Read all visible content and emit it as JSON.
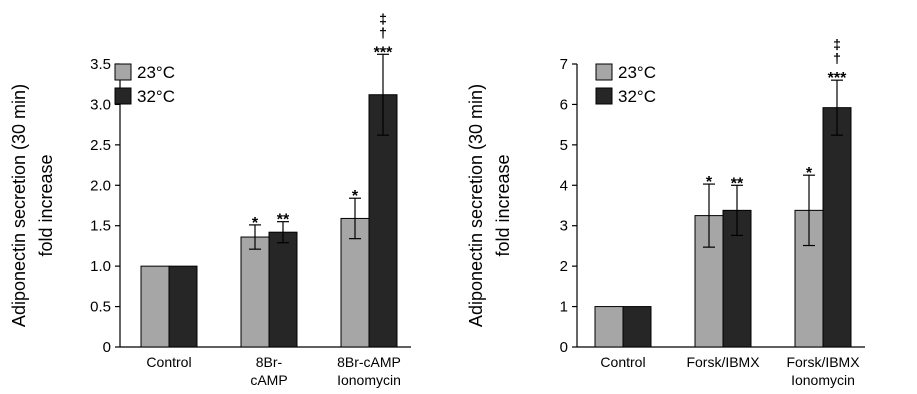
{
  "chart_data": [
    {
      "type": "bar",
      "ylabel_lines": [
        "Adiponectin secretion (30 min)",
        "fold increase"
      ],
      "ylim": [
        0,
        3.5
      ],
      "yticks": [
        "0",
        "0.5",
        "1.0",
        "1.5",
        "2.0",
        "2.5",
        "3.0",
        "3.5"
      ],
      "ytick_values": [
        0,
        0.5,
        1.0,
        1.5,
        2.0,
        2.5,
        3.0,
        3.5
      ],
      "categories": [
        {
          "lines": [
            "Control"
          ]
        },
        {
          "lines": [
            "8Br-",
            "cAMP"
          ]
        },
        {
          "lines": [
            "8Br-cAMP",
            "Ionomycin"
          ]
        }
      ],
      "series": [
        {
          "name": "23°C",
          "color": "#a6a6a6",
          "values": [
            1.0,
            1.36,
            1.59
          ],
          "errors": [
            0,
            0.15,
            0.25
          ],
          "annotations": [
            [],
            [
              "*"
            ],
            [
              "*"
            ]
          ]
        },
        {
          "name": "32°C",
          "color": "#262626",
          "values": [
            1.0,
            1.42,
            3.12
          ],
          "errors": [
            0,
            0.13,
            0.5
          ],
          "annotations": [
            [],
            [
              "**"
            ],
            [
              "‡",
              "†",
              "***"
            ]
          ]
        }
      ],
      "legend_position": "top-left",
      "grid": false
    },
    {
      "type": "bar",
      "ylabel_lines": [
        "Adiponectin secretion (30 min)",
        "fold increase"
      ],
      "ylim": [
        0,
        7
      ],
      "yticks": [
        "0",
        "1",
        "2",
        "3",
        "4",
        "5",
        "6",
        "7"
      ],
      "ytick_values": [
        0,
        1,
        2,
        3,
        4,
        5,
        6,
        7
      ],
      "categories": [
        {
          "lines": [
            "Control"
          ]
        },
        {
          "lines": [
            "Forsk/IBMX"
          ]
        },
        {
          "lines": [
            "Forsk/IBMX",
            "Ionomycin"
          ]
        }
      ],
      "series": [
        {
          "name": "23°C",
          "color": "#a6a6a6",
          "values": [
            1.0,
            3.25,
            3.38
          ],
          "errors": [
            0,
            0.78,
            0.87
          ],
          "annotations": [
            [],
            [
              "*"
            ],
            [
              "*"
            ]
          ]
        },
        {
          "name": "32°C",
          "color": "#262626",
          "values": [
            1.0,
            3.38,
            5.92
          ],
          "errors": [
            0,
            0.62,
            0.68
          ],
          "annotations": [
            [],
            [
              "**"
            ],
            [
              "‡",
              "†",
              "***"
            ]
          ]
        }
      ],
      "legend_position": "top-left",
      "grid": false
    }
  ]
}
